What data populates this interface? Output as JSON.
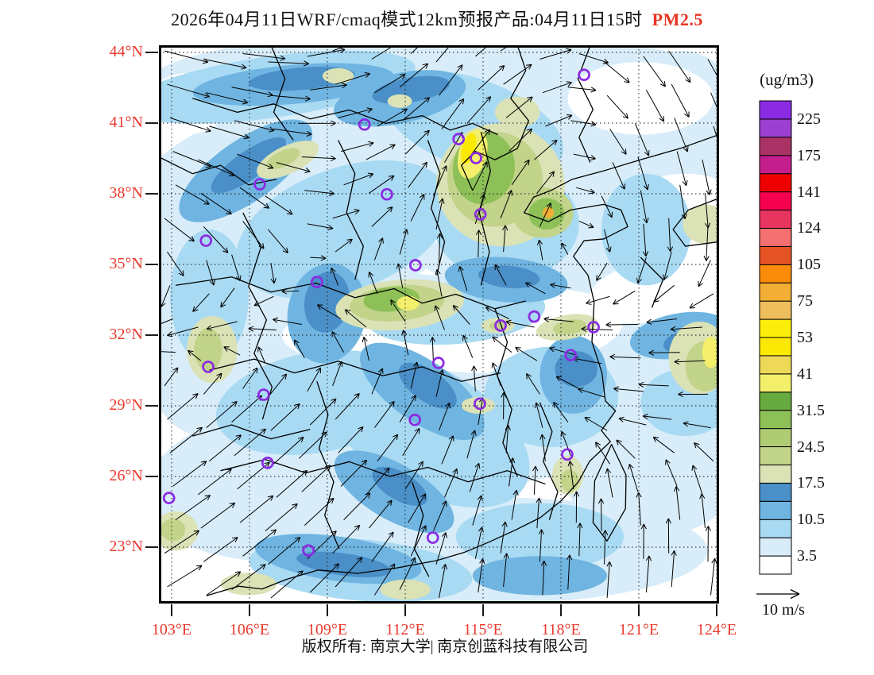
{
  "title": {
    "text": "2026年04月11日WRF/cmaq模式12km预报产品:04月11日15时",
    "species": "PM2.5",
    "species_color": "#ea3323"
  },
  "axes": {
    "label_color": "#ea3a2e",
    "lat_labels": [
      "44°N",
      "41°N",
      "38°N",
      "35°N",
      "32°N",
      "29°N",
      "26°N",
      "23°N"
    ],
    "lon_labels": [
      "103°E",
      "106°E",
      "109°E",
      "112°E",
      "115°E",
      "118°E",
      "121°E",
      "124°E"
    ]
  },
  "colorbar": {
    "units": "(ug/m3)",
    "labels_bottom_to_top": [
      "3.5",
      "10.5",
      "17.5",
      "24.5",
      "31.5",
      "41",
      "53",
      "75",
      "105",
      "124",
      "141",
      "175",
      "225"
    ],
    "palette_bottom_to_top": [
      "#FFFFFF",
      "#D8EDF9",
      "#A9DAF3",
      "#70B5E1",
      "#4A8FC7",
      "#DAE2B6",
      "#C2D38A",
      "#B0CC72",
      "#8DC057",
      "#67AA3F",
      "#F3EF6B",
      "#EED858",
      "#FCE903",
      "#FDED0B",
      "#EFBF5E",
      "#F3AF35",
      "#FB8C0A",
      "#E65426",
      "#F57070",
      "#E73560",
      "#F50150",
      "#EE0000",
      "#C41E8C",
      "#AA3366",
      "#9B3FD1",
      "#8A2BE2"
    ]
  },
  "wind_legend": {
    "label": "10 m/s"
  },
  "footer": {
    "copyright": "版权所有: 南京大学| 南京创蓝科技有限公司"
  },
  "chart_data": {
    "type": "heatmap",
    "title": "2026年04月11日WRF/cmaq模式12km预报产品:04月11日15时 PM2.5",
    "field": "PM2.5 filled contours with wind vectors over eastern China",
    "units": "ug/m3",
    "x_axis": {
      "label": "longitude",
      "ticks": [
        103,
        106,
        109,
        112,
        115,
        118,
        121,
        124
      ],
      "unit": "°E"
    },
    "y_axis": {
      "label": "latitude",
      "ticks": [
        44,
        41,
        38,
        35,
        32,
        29,
        26,
        23
      ],
      "unit": "°N"
    },
    "labeled_levels": [
      3.5,
      10.5,
      17.5,
      24.5,
      31.5,
      41,
      53,
      75,
      105,
      124,
      141,
      175,
      225
    ],
    "n_color_bins": 26,
    "wind_reference": "10 m/s",
    "legend_position": "right",
    "grid": "dotted lat/lon graticule every 3 degrees"
  },
  "map_render": {
    "station_marker_color": "#8B2BE2",
    "stations": [
      [
        759,
        53
      ],
      [
        367,
        142
      ],
      [
        535,
        168
      ],
      [
        566,
        202
      ],
      [
        407,
        267
      ],
      [
        574,
        303
      ],
      [
        180,
        249
      ],
      [
        84,
        350
      ],
      [
        458,
        394
      ],
      [
        282,
        424
      ],
      [
        670,
        486
      ],
      [
        610,
        502
      ],
      [
        776,
        505
      ],
      [
        735,
        555
      ],
      [
        499,
        569
      ],
      [
        88,
        576
      ],
      [
        187,
        626
      ],
      [
        573,
        642
      ],
      [
        457,
        671
      ],
      [
        729,
        733
      ],
      [
        194,
        748
      ],
      [
        18,
        811
      ],
      [
        489,
        882
      ],
      [
        267,
        905
      ]
    ],
    "blobs": [
      [
        500,
        70,
        520,
        95,
        0,
        2
      ],
      [
        240,
        300,
        330,
        200,
        -15,
        2
      ],
      [
        640,
        260,
        280,
        190,
        10,
        2
      ],
      [
        460,
        600,
        420,
        190,
        5,
        2
      ],
      [
        300,
        770,
        330,
        150,
        -8,
        2
      ],
      [
        760,
        560,
        230,
        150,
        0,
        2
      ],
      [
        600,
        905,
        380,
        95,
        0,
        2
      ],
      [
        935,
        180,
        120,
        170,
        0,
        2
      ],
      [
        80,
        500,
        120,
        200,
        0,
        2
      ],
      [
        880,
        760,
        160,
        120,
        0,
        2
      ],
      [
        620,
        510,
        210,
        75,
        -5,
        0
      ],
      [
        860,
        95,
        130,
        65,
        0,
        0
      ],
      [
        330,
        520,
        110,
        45,
        0,
        0
      ],
      [
        940,
        270,
        85,
        40,
        0,
        0
      ],
      [
        470,
        300,
        90,
        55,
        0,
        0
      ],
      [
        50,
        105,
        70,
        55,
        0,
        0
      ],
      [
        885,
        440,
        120,
        55,
        -10,
        0
      ],
      [
        200,
        75,
        260,
        55,
        -8,
        3
      ],
      [
        560,
        140,
        170,
        80,
        20,
        3
      ],
      [
        330,
        330,
        200,
        110,
        -20,
        3
      ],
      [
        620,
        320,
        130,
        100,
        0,
        3
      ],
      [
        280,
        640,
        180,
        90,
        -10,
        3
      ],
      [
        480,
        690,
        200,
        110,
        30,
        3
      ],
      [
        700,
        630,
        120,
        90,
        0,
        3
      ],
      [
        530,
        480,
        160,
        55,
        -5,
        3
      ],
      [
        870,
        330,
        80,
        100,
        0,
        3
      ],
      [
        360,
        940,
        200,
        55,
        5,
        3
      ],
      [
        680,
        880,
        150,
        60,
        0,
        3
      ],
      [
        940,
        640,
        80,
        60,
        0,
        3
      ],
      [
        90,
        450,
        70,
        120,
        0,
        3
      ],
      [
        155,
        225,
        140,
        55,
        -35,
        4
      ],
      [
        430,
        95,
        120,
        45,
        -12,
        4
      ],
      [
        300,
        480,
        70,
        90,
        10,
        4
      ],
      [
        470,
        620,
        130,
        55,
        35,
        4
      ],
      [
        420,
        800,
        120,
        50,
        30,
        4
      ],
      [
        740,
        590,
        60,
        70,
        0,
        4
      ],
      [
        620,
        420,
        110,
        40,
        5,
        4
      ],
      [
        580,
        250,
        70,
        80,
        0,
        4
      ],
      [
        320,
        920,
        150,
        40,
        8,
        4
      ],
      [
        240,
        70,
        180,
        35,
        -5,
        4
      ],
      [
        930,
        520,
        90,
        40,
        -10,
        4
      ],
      [
        680,
        950,
        120,
        35,
        0,
        4
      ],
      [
        160,
        215,
        80,
        25,
        -35,
        5
      ],
      [
        450,
        80,
        70,
        22,
        -10,
        5
      ],
      [
        300,
        460,
        40,
        55,
        10,
        5
      ],
      [
        480,
        610,
        60,
        28,
        35,
        5
      ],
      [
        430,
        790,
        55,
        25,
        30,
        5
      ],
      [
        745,
        580,
        38,
        32,
        0,
        5
      ],
      [
        600,
        260,
        40,
        45,
        0,
        5
      ],
      [
        330,
        930,
        85,
        20,
        8,
        5
      ],
      [
        255,
        60,
        95,
        20,
        -5,
        5
      ],
      [
        625,
        415,
        55,
        20,
        5,
        5
      ],
      [
        950,
        530,
        50,
        22,
        -10,
        5
      ],
      [
        610,
        250,
        115,
        110,
        10,
        6
      ],
      [
        600,
        240,
        85,
        85,
        10,
        7
      ],
      [
        580,
        220,
        55,
        65,
        10,
        9
      ],
      [
        560,
        195,
        25,
        45,
        15,
        11
      ],
      [
        553,
        185,
        12,
        28,
        15,
        13
      ],
      [
        685,
        300,
        55,
        45,
        0,
        7
      ],
      [
        692,
        302,
        32,
        28,
        0,
        9
      ],
      [
        695,
        300,
        10,
        10,
        0,
        16
      ],
      [
        640,
        120,
        40,
        28,
        0,
        6
      ],
      [
        230,
        205,
        60,
        25,
        -25,
        6
      ],
      [
        222,
        203,
        32,
        14,
        -25,
        7
      ],
      [
        95,
        545,
        45,
        60,
        0,
        6
      ],
      [
        88,
        545,
        25,
        38,
        0,
        7
      ],
      [
        430,
        465,
        115,
        45,
        -5,
        6
      ],
      [
        425,
        462,
        85,
        32,
        -5,
        7
      ],
      [
        415,
        455,
        50,
        22,
        -5,
        9
      ],
      [
        445,
        462,
        20,
        13,
        0,
        11
      ],
      [
        728,
        505,
        55,
        22,
        -10,
        6
      ],
      [
        733,
        505,
        30,
        13,
        -10,
        7
      ],
      [
        605,
        502,
        30,
        14,
        0,
        6
      ],
      [
        606,
        503,
        16,
        8,
        0,
        7
      ],
      [
        965,
        560,
        55,
        65,
        0,
        6
      ],
      [
        975,
        575,
        35,
        45,
        0,
        7
      ],
      [
        985,
        550,
        15,
        28,
        0,
        11
      ],
      [
        975,
        320,
        40,
        35,
        0,
        6
      ],
      [
        570,
        645,
        30,
        15,
        0,
        6
      ],
      [
        730,
        770,
        28,
        35,
        0,
        6
      ],
      [
        733,
        780,
        16,
        20,
        0,
        7
      ],
      [
        30,
        870,
        40,
        35,
        0,
        6
      ],
      [
        25,
        868,
        22,
        20,
        0,
        7
      ],
      [
        160,
        965,
        50,
        20,
        0,
        6
      ],
      [
        440,
        975,
        45,
        18,
        0,
        6
      ],
      [
        320,
        55,
        28,
        14,
        0,
        6
      ],
      [
        430,
        100,
        22,
        12,
        0,
        6
      ]
    ],
    "boundaries": [
      "M 1000,160 L 930,185 L 860,205 L 794,225 L 738,240 L 700,260 L 669,272 L 652,300 L 695,316 L 735,295 L 794,285 L 825,295 L 837,325 L 794,347 L 759,350 L 740,378 L 766,412 L 777,460 L 773,531 L 791,587 L 797,637 L 815,655 L 790,690 L 806,710 L 769,745 L 749,782 L 718,816 L 681,846 L 635,869 L 589,890 L 546,908 L 496,923 L 426,936 L 355,946 L 284,940 L 227,957 L 184,974 L 142,969 L 85,986",
      "M 808,715 L 834,770 L 833,830 L 800,888 L 775,855 L 778,780 Z",
      "M 1000,274 L 945,295 L 918,330 L 940,360 L 1000,352",
      "M 640,0 L 655,45 L 628,95 L 660,135 L 640,185 L 600,205 L 565,190 L 540,215 L 560,260",
      "M 770,0 L 748,60 L 775,115 L 750,165 L 770,210",
      "M 60,95 L 140,120 L 205,105 L 270,132 L 340,116 L 405,140 L 470,126 L 520,152 L 560,140 L 605,160",
      "M 480,170 L 502,230 L 486,292 L 510,352 L 496,412",
      "M 575,155 L 592,225 L 572,300 L 590,370 L 575,430",
      "M 30,430 L 130,415 L 200,442 L 280,426 L 350,452 L 420,436 L 470,462 L 530,446 L 600,472 L 655,458",
      "M 150,300 L 182,362 L 160,432 L 192,492 L 170,552 L 202,612 L 185,670",
      "M 600,472 L 622,532 L 604,592 L 630,652 L 614,712 L 640,772",
      "M 90,582 L 170,562 L 242,587 L 320,566 L 400,592 L 470,576 L 540,602 L 610,587",
      "M 110,762 L 190,742 L 262,766 L 340,746 L 412,772 L 480,756 L 552,782 L 622,762 L 690,786",
      "M 282,602 L 302,662 L 286,722 L 312,782 L 296,842 L 322,902",
      "M 452,782 L 472,842 L 456,902 L 482,952",
      "M 680,640 L 702,692 L 686,745 L 712,800 L 697,850",
      "M 0,200 L 60,230 L 110,215 L 160,250 L 210,240",
      "M 200,0 L 225,60 L 205,120 L 240,170",
      "M 860,380 L 900,420 L 880,470",
      "M 320,170 L 350,230 L 335,300 L 365,360 L 350,420",
      "M 60,700 L 130,680 L 200,705 L 270,688"
    ],
    "wind_grid": {
      "angles": [
        [
          -15,
          -5,
          25,
          50,
          20,
          -50,
          -60
        ],
        [
          -20,
          -15,
          15,
          55,
          35,
          -70,
          -75
        ],
        [
          -40,
          -60,
          30,
          80,
          70,
          -85,
          -95
        ],
        [
          -160,
          -170,
          150,
          110,
          170,
          180,
          185
        ],
        [
          40,
          42,
          48,
          70,
          100,
          170,
          180
        ],
        [
          35,
          40,
          45,
          65,
          85,
          95,
          100
        ],
        [
          30,
          38,
          50,
          80,
          88,
          85,
          82
        ]
      ],
      "mags": [
        [
          1.3,
          1.2,
          1.0,
          1.1,
          0.9,
          1.0,
          1.1
        ],
        [
          1.2,
          1.1,
          0.9,
          1.0,
          0.8,
          0.9,
          1.0
        ],
        [
          1.0,
          0.9,
          0.7,
          0.8,
          0.7,
          0.8,
          0.9
        ],
        [
          0.9,
          0.8,
          0.7,
          0.6,
          0.7,
          0.8,
          0.8
        ],
        [
          1.1,
          1.1,
          0.9,
          0.7,
          0.6,
          0.7,
          0.7
        ],
        [
          1.2,
          1.2,
          1.0,
          0.8,
          0.7,
          0.8,
          0.9
        ],
        [
          1.1,
          1.2,
          1.1,
          0.9,
          0.9,
          1.0,
          1.0
        ]
      ]
    }
  }
}
